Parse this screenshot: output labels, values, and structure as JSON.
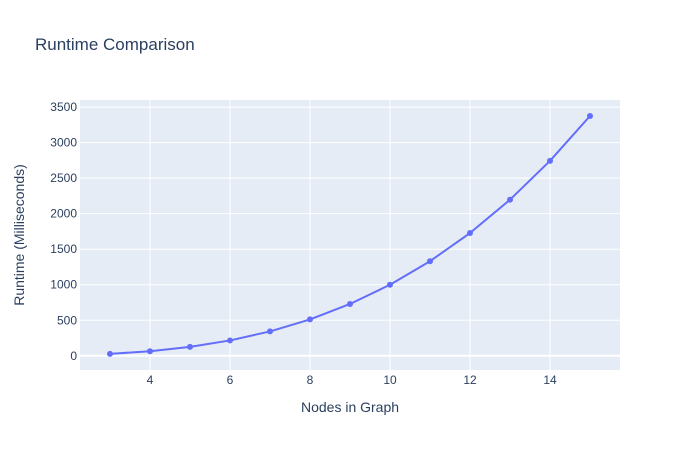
{
  "chart_data": {
    "type": "line",
    "title": "Runtime Comparison",
    "xlabel": "Nodes in Graph",
    "ylabel": "Runtime (Milliseconds)",
    "x": [
      3,
      4,
      5,
      6,
      7,
      8,
      9,
      10,
      11,
      12,
      13,
      14,
      15
    ],
    "series": [
      {
        "values": [
          27,
          64,
          125,
          216,
          343,
          512,
          729,
          1000,
          1331,
          1728,
          2197,
          2744,
          3375
        ],
        "color": "#636efa"
      }
    ],
    "xlim": [
      2.25,
      15.75
    ],
    "ylim": [
      -200,
      3600
    ],
    "x_ticks": [
      4,
      6,
      8,
      10,
      12,
      14
    ],
    "x_tick_labels": [
      "4",
      "6",
      "8",
      "10",
      "12",
      "14"
    ],
    "y_ticks": [
      0,
      500,
      1000,
      1500,
      2000,
      2500,
      3000,
      3500
    ],
    "y_tick_labels": [
      "0",
      "500",
      "1000",
      "1500",
      "2000",
      "2500",
      "3000",
      "3500"
    ],
    "grid": true,
    "markers": true,
    "legend": "none",
    "colors": {
      "plot_background": "#e5ecf6",
      "grid": "#ffffff",
      "text": "#2a3f5f",
      "line": "#636efa"
    }
  }
}
